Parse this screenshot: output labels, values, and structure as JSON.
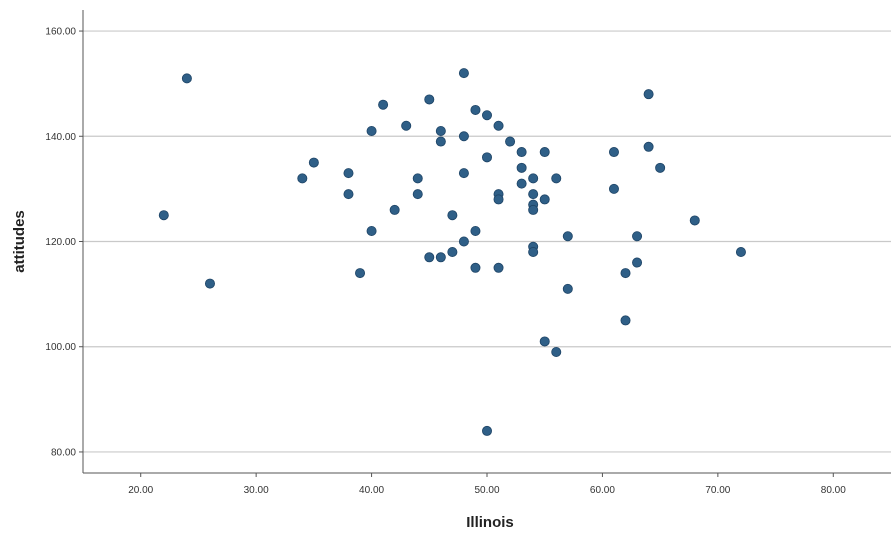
{
  "chart_data": {
    "type": "scatter",
    "title": "",
    "xlabel": "Illinois",
    "ylabel": "attitudes",
    "xlim": [
      15,
      85
    ],
    "ylim": [
      76,
      164
    ],
    "x_ticks": [
      20,
      30,
      40,
      50,
      60,
      70,
      80
    ],
    "x_tick_labels": [
      "20.00",
      "30.00",
      "40.00",
      "50.00",
      "60.00",
      "70.00",
      "80.00"
    ],
    "y_ticks": [
      80,
      100,
      120,
      140,
      160
    ],
    "y_tick_labels": [
      "80.00",
      "100.00",
      "120.00",
      "140.00",
      "160.00"
    ],
    "grid": {
      "horizontal": true,
      "vertical": false
    },
    "marker_color": "#2f5f87",
    "grid_color": "#c9c9c9",
    "series": [
      {
        "points": [
          [
            22,
            125
          ],
          [
            24,
            151
          ],
          [
            26,
            112
          ],
          [
            34,
            132
          ],
          [
            35,
            135
          ],
          [
            38,
            133
          ],
          [
            38,
            129
          ],
          [
            39,
            114
          ],
          [
            40,
            141
          ],
          [
            40,
            122
          ],
          [
            41,
            146
          ],
          [
            42,
            126
          ],
          [
            43,
            142
          ],
          [
            44,
            132
          ],
          [
            44,
            129
          ],
          [
            45,
            147
          ],
          [
            45,
            117
          ],
          [
            46,
            141
          ],
          [
            46,
            139
          ],
          [
            46,
            117
          ],
          [
            47,
            125
          ],
          [
            47,
            118
          ],
          [
            48,
            152
          ],
          [
            48,
            140
          ],
          [
            48,
            133
          ],
          [
            48,
            120
          ],
          [
            49,
            145
          ],
          [
            49,
            122
          ],
          [
            49,
            115
          ],
          [
            50,
            144
          ],
          [
            50,
            136
          ],
          [
            50,
            84
          ],
          [
            51,
            142
          ],
          [
            51,
            129
          ],
          [
            51,
            128
          ],
          [
            51,
            115
          ],
          [
            52,
            139
          ],
          [
            53,
            137
          ],
          [
            53,
            134
          ],
          [
            53,
            131
          ],
          [
            54,
            132
          ],
          [
            54,
            129
          ],
          [
            54,
            127
          ],
          [
            54,
            126
          ],
          [
            54,
            119
          ],
          [
            54,
            118
          ],
          [
            55,
            137
          ],
          [
            55,
            128
          ],
          [
            55,
            101
          ],
          [
            56,
            132
          ],
          [
            56,
            99
          ],
          [
            57,
            121
          ],
          [
            57,
            111
          ],
          [
            61,
            137
          ],
          [
            61,
            130
          ],
          [
            62,
            114
          ],
          [
            62,
            105
          ],
          [
            63,
            121
          ],
          [
            63,
            116
          ],
          [
            64,
            148
          ],
          [
            64,
            138
          ],
          [
            65,
            134
          ],
          [
            68,
            124
          ],
          [
            72,
            118
          ]
        ]
      }
    ]
  }
}
